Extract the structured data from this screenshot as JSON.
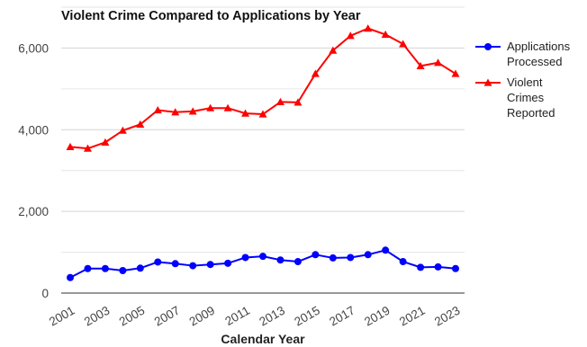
{
  "chart_data": {
    "type": "line",
    "title": "Violent Crime Compared to Applications by Year",
    "xlabel": "Calendar Year",
    "ylabel": "",
    "ylim": [
      0,
      7000
    ],
    "yticks": [
      0,
      2000,
      4000,
      6000
    ],
    "ytick_labels": [
      "0",
      "2,000",
      "4,000",
      "6,000"
    ],
    "xtick_labels": [
      "2001",
      "2003",
      "2005",
      "2007",
      "2009",
      "2011",
      "2013",
      "2015",
      "2017",
      "2019",
      "2021",
      "2023"
    ],
    "grid": true,
    "legend_position": "right",
    "x": [
      2001,
      2002,
      2003,
      2004,
      2005,
      2006,
      2007,
      2008,
      2009,
      2010,
      2011,
      2012,
      2013,
      2014,
      2015,
      2016,
      2017,
      2018,
      2019,
      2020,
      2021,
      2022,
      2023
    ],
    "series": [
      {
        "name": "Applications Processed",
        "legend_lines": [
          "Applications",
          "Processed"
        ],
        "color": "#0000ff",
        "marker": "circle",
        "values": [
          380,
          600,
          600,
          550,
          610,
          760,
          720,
          670,
          700,
          730,
          870,
          900,
          810,
          770,
          940,
          860,
          870,
          940,
          1050,
          770,
          630,
          640,
          600
        ]
      },
      {
        "name": "Violent Crimes Reported",
        "legend_lines": [
          "Violent",
          "Crimes",
          "Reported"
        ],
        "color": "#ff0000",
        "marker": "triangle",
        "values": [
          3580,
          3540,
          3690,
          3980,
          4130,
          4480,
          4430,
          4450,
          4530,
          4530,
          4400,
          4380,
          4680,
          4670,
          5370,
          5940,
          6300,
          6480,
          6330,
          6100,
          5560,
          5640,
          5370
        ]
      }
    ]
  }
}
